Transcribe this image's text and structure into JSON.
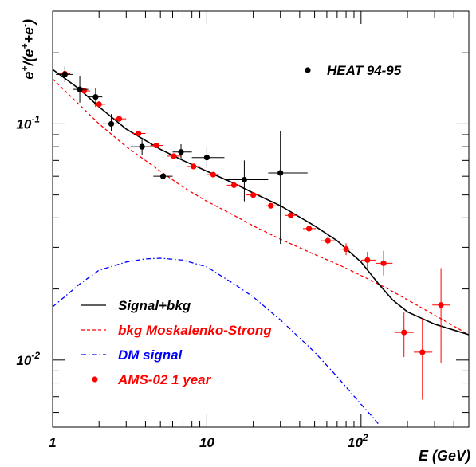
{
  "chart_data": {
    "type": "scatter",
    "xscale": "log",
    "yscale": "log",
    "xlim": [
      1,
      500
    ],
    "ylim": [
      0.0052,
      0.3
    ],
    "xlabel": "E (GeV)",
    "ylabel_parts": [
      "e",
      "+",
      "/(e",
      "+",
      "+e",
      "-",
      ")"
    ],
    "x_ticks": [
      {
        "value": 1,
        "base": "1",
        "exp": ""
      },
      {
        "value": 10,
        "base": "10",
        "exp": ""
      },
      {
        "value": 100,
        "base": "10",
        "exp": "2"
      }
    ],
    "y_ticks": [
      {
        "value": 0.01,
        "base": "10",
        "exp": "-2"
      },
      {
        "value": 0.1,
        "base": "10",
        "exp": "-1"
      }
    ],
    "colors": {
      "heat": "#000000",
      "ams": "#ff0000",
      "signal_bkg": "#000000",
      "bkg": "#ff0000",
      "dm": "#0000ff"
    },
    "series": [
      {
        "name": "Signal+bkg",
        "kind": "line",
        "style": "solid",
        "color": "#000000",
        "x": [
          1,
          1.5,
          2,
          3,
          5,
          7,
          10,
          15,
          20,
          30,
          50,
          70,
          100,
          130,
          160,
          200,
          300,
          500
        ],
        "y": [
          0.17,
          0.14,
          0.118,
          0.095,
          0.078,
          0.07,
          0.063,
          0.056,
          0.051,
          0.045,
          0.037,
          0.032,
          0.026,
          0.021,
          0.018,
          0.016,
          0.0142,
          0.0128
        ]
      },
      {
        "name": "bkg Moskalenko-Strong",
        "kind": "line",
        "style": "dashed",
        "color": "#ff0000",
        "x": [
          1,
          1.5,
          2,
          3,
          5,
          7,
          10,
          15,
          20,
          30,
          50,
          70,
          100,
          150,
          200,
          300,
          500
        ],
        "y": [
          0.155,
          0.12,
          0.1,
          0.08,
          0.063,
          0.054,
          0.047,
          0.041,
          0.037,
          0.0325,
          0.028,
          0.0255,
          0.0228,
          0.02,
          0.018,
          0.0155,
          0.0128
        ]
      },
      {
        "name": "DM signal",
        "kind": "line",
        "style": "dashdot",
        "color": "#0000ff",
        "x": [
          1,
          1.5,
          2,
          3,
          4,
          5,
          7,
          10,
          15,
          20,
          30,
          50,
          70,
          100,
          120,
          135
        ],
        "y": [
          0.0168,
          0.021,
          0.024,
          0.026,
          0.0268,
          0.027,
          0.0265,
          0.0248,
          0.021,
          0.0185,
          0.0148,
          0.0108,
          0.0085,
          0.0065,
          0.0057,
          0.0052
        ]
      },
      {
        "name": "HEAT 94-95",
        "kind": "points",
        "color": "#000000",
        "points": [
          {
            "x": 1.2,
            "y": 0.162,
            "xlo": 1.05,
            "xhi": 1.35,
            "ylo": 0.15,
            "yhi": 0.175
          },
          {
            "x": 1.5,
            "y": 0.14,
            "xlo": 1.35,
            "xhi": 1.7,
            "ylo": 0.123,
            "yhi": 0.16
          },
          {
            "x": 1.9,
            "y": 0.13,
            "xlo": 1.7,
            "xhi": 2.1,
            "ylo": 0.118,
            "yhi": 0.142
          },
          {
            "x": 2.4,
            "y": 0.1,
            "xlo": 2.1,
            "xhi": 2.8,
            "ylo": 0.093,
            "yhi": 0.11
          },
          {
            "x": 3.8,
            "y": 0.08,
            "xlo": 3.2,
            "xhi": 4.5,
            "ylo": 0.074,
            "yhi": 0.086
          },
          {
            "x": 5.2,
            "y": 0.06,
            "xlo": 4.5,
            "xhi": 6,
            "ylo": 0.055,
            "yhi": 0.066
          },
          {
            "x": 6.8,
            "y": 0.076,
            "xlo": 6,
            "xhi": 8,
            "ylo": 0.071,
            "yhi": 0.082
          },
          {
            "x": 10,
            "y": 0.072,
            "xlo": 8,
            "xhi": 13,
            "ylo": 0.065,
            "yhi": 0.08
          },
          {
            "x": 17.5,
            "y": 0.058,
            "xlo": 13,
            "xhi": 25,
            "ylo": 0.047,
            "yhi": 0.07
          },
          {
            "x": 30,
            "y": 0.062,
            "xlo": 25,
            "xhi": 45,
            "ylo": 0.031,
            "yhi": 0.093
          }
        ]
      },
      {
        "name": "AMS-02 1 year",
        "kind": "points",
        "color": "#ff0000",
        "points": [
          {
            "x": 1.2,
            "y": 0.163,
            "xlo": 1.1,
            "xhi": 1.3
          },
          {
            "x": 1.6,
            "y": 0.138,
            "xlo": 1.45,
            "xhi": 1.75
          },
          {
            "x": 2.0,
            "y": 0.121,
            "xlo": 1.85,
            "xhi": 2.2
          },
          {
            "x": 2.7,
            "y": 0.105,
            "xlo": 2.5,
            "xhi": 3.0
          },
          {
            "x": 3.6,
            "y": 0.091,
            "xlo": 3.3,
            "xhi": 4.0
          },
          {
            "x": 4.7,
            "y": 0.081,
            "xlo": 4.3,
            "xhi": 5.2
          },
          {
            "x": 6.1,
            "y": 0.073,
            "xlo": 5.5,
            "xhi": 6.8
          },
          {
            "x": 8.2,
            "y": 0.066,
            "xlo": 7.5,
            "xhi": 9.0
          },
          {
            "x": 11,
            "y": 0.061,
            "xlo": 10,
            "xhi": 12
          },
          {
            "x": 15,
            "y": 0.055,
            "xlo": 13.5,
            "xhi": 16.5
          },
          {
            "x": 20,
            "y": 0.05,
            "xlo": 18,
            "xhi": 22
          },
          {
            "x": 26,
            "y": 0.045,
            "xlo": 24,
            "xhi": 29
          },
          {
            "x": 35,
            "y": 0.041,
            "xlo": 32,
            "xhi": 39
          },
          {
            "x": 46,
            "y": 0.036,
            "xlo": 42,
            "xhi": 51
          },
          {
            "x": 61,
            "y": 0.032,
            "xlo": 55,
            "xhi": 68,
            "ylo": 0.0305,
            "yhi": 0.0335
          },
          {
            "x": 80,
            "y": 0.0295,
            "xlo": 72,
            "xhi": 90,
            "ylo": 0.0278,
            "yhi": 0.0312
          },
          {
            "x": 110,
            "y": 0.0265,
            "xlo": 100,
            "xhi": 125,
            "ylo": 0.0243,
            "yhi": 0.0287
          },
          {
            "x": 140,
            "y": 0.0257,
            "xlo": 125,
            "xhi": 160,
            "ylo": 0.0228,
            "yhi": 0.029
          },
          {
            "x": 190,
            "y": 0.0131,
            "xlo": 165,
            "xhi": 220,
            "ylo": 0.0103,
            "yhi": 0.0159
          },
          {
            "x": 250,
            "y": 0.0108,
            "xlo": 220,
            "xhi": 290,
            "ylo": 0.0068,
            "yhi": 0.015
          },
          {
            "x": 330,
            "y": 0.0171,
            "xlo": 290,
            "xhi": 380,
            "ylo": 0.0097,
            "yhi": 0.0245
          }
        ]
      }
    ],
    "legend_position": "bottom-left",
    "heat_legend_position": "top-right"
  }
}
